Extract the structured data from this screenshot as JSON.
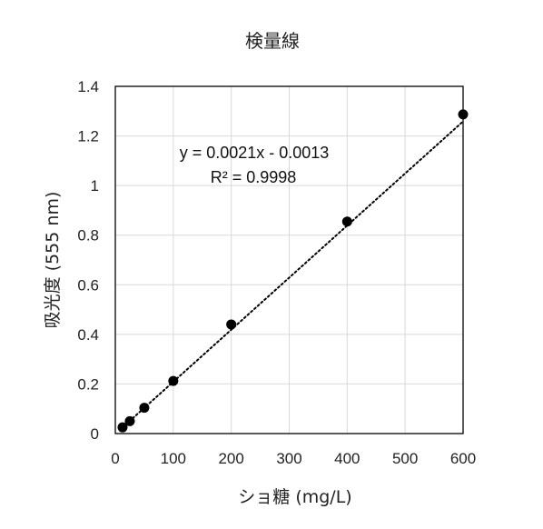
{
  "chart_data": {
    "type": "scatter",
    "title": "検量線",
    "xlabel": "ショ糖 (mg/L)",
    "ylabel": "吸光度 (555 nm)",
    "xlim": [
      0,
      600
    ],
    "ylim": [
      0,
      1.4
    ],
    "x_ticks": [
      0,
      100,
      200,
      300,
      400,
      500,
      600
    ],
    "y_ticks": [
      0,
      0.2,
      0.4,
      0.6,
      0.8,
      1.0,
      1.2,
      1.4
    ],
    "x_tick_labels": [
      "0",
      "100",
      "200",
      "300",
      "400",
      "500",
      "600"
    ],
    "y_tick_labels": [
      "0",
      "0.2",
      "0.4",
      "0.6",
      "0.8",
      "1",
      "1.2",
      "1.4"
    ],
    "grid": true,
    "series": [
      {
        "x": [
          12.5,
          25,
          50,
          100,
          200,
          400,
          600
        ],
        "y": [
          0.025,
          0.05,
          0.104,
          0.212,
          0.44,
          0.855,
          1.287
        ],
        "marker": "circle",
        "color": "#000000"
      }
    ],
    "trendline": {
      "type": "linear",
      "slope": 0.0021,
      "intercept": -0.0013,
      "style": "dotted",
      "color": "#000000",
      "equation": "y = 0.0021x - 0.0013",
      "r_squared": "R² = 0.9998"
    }
  }
}
